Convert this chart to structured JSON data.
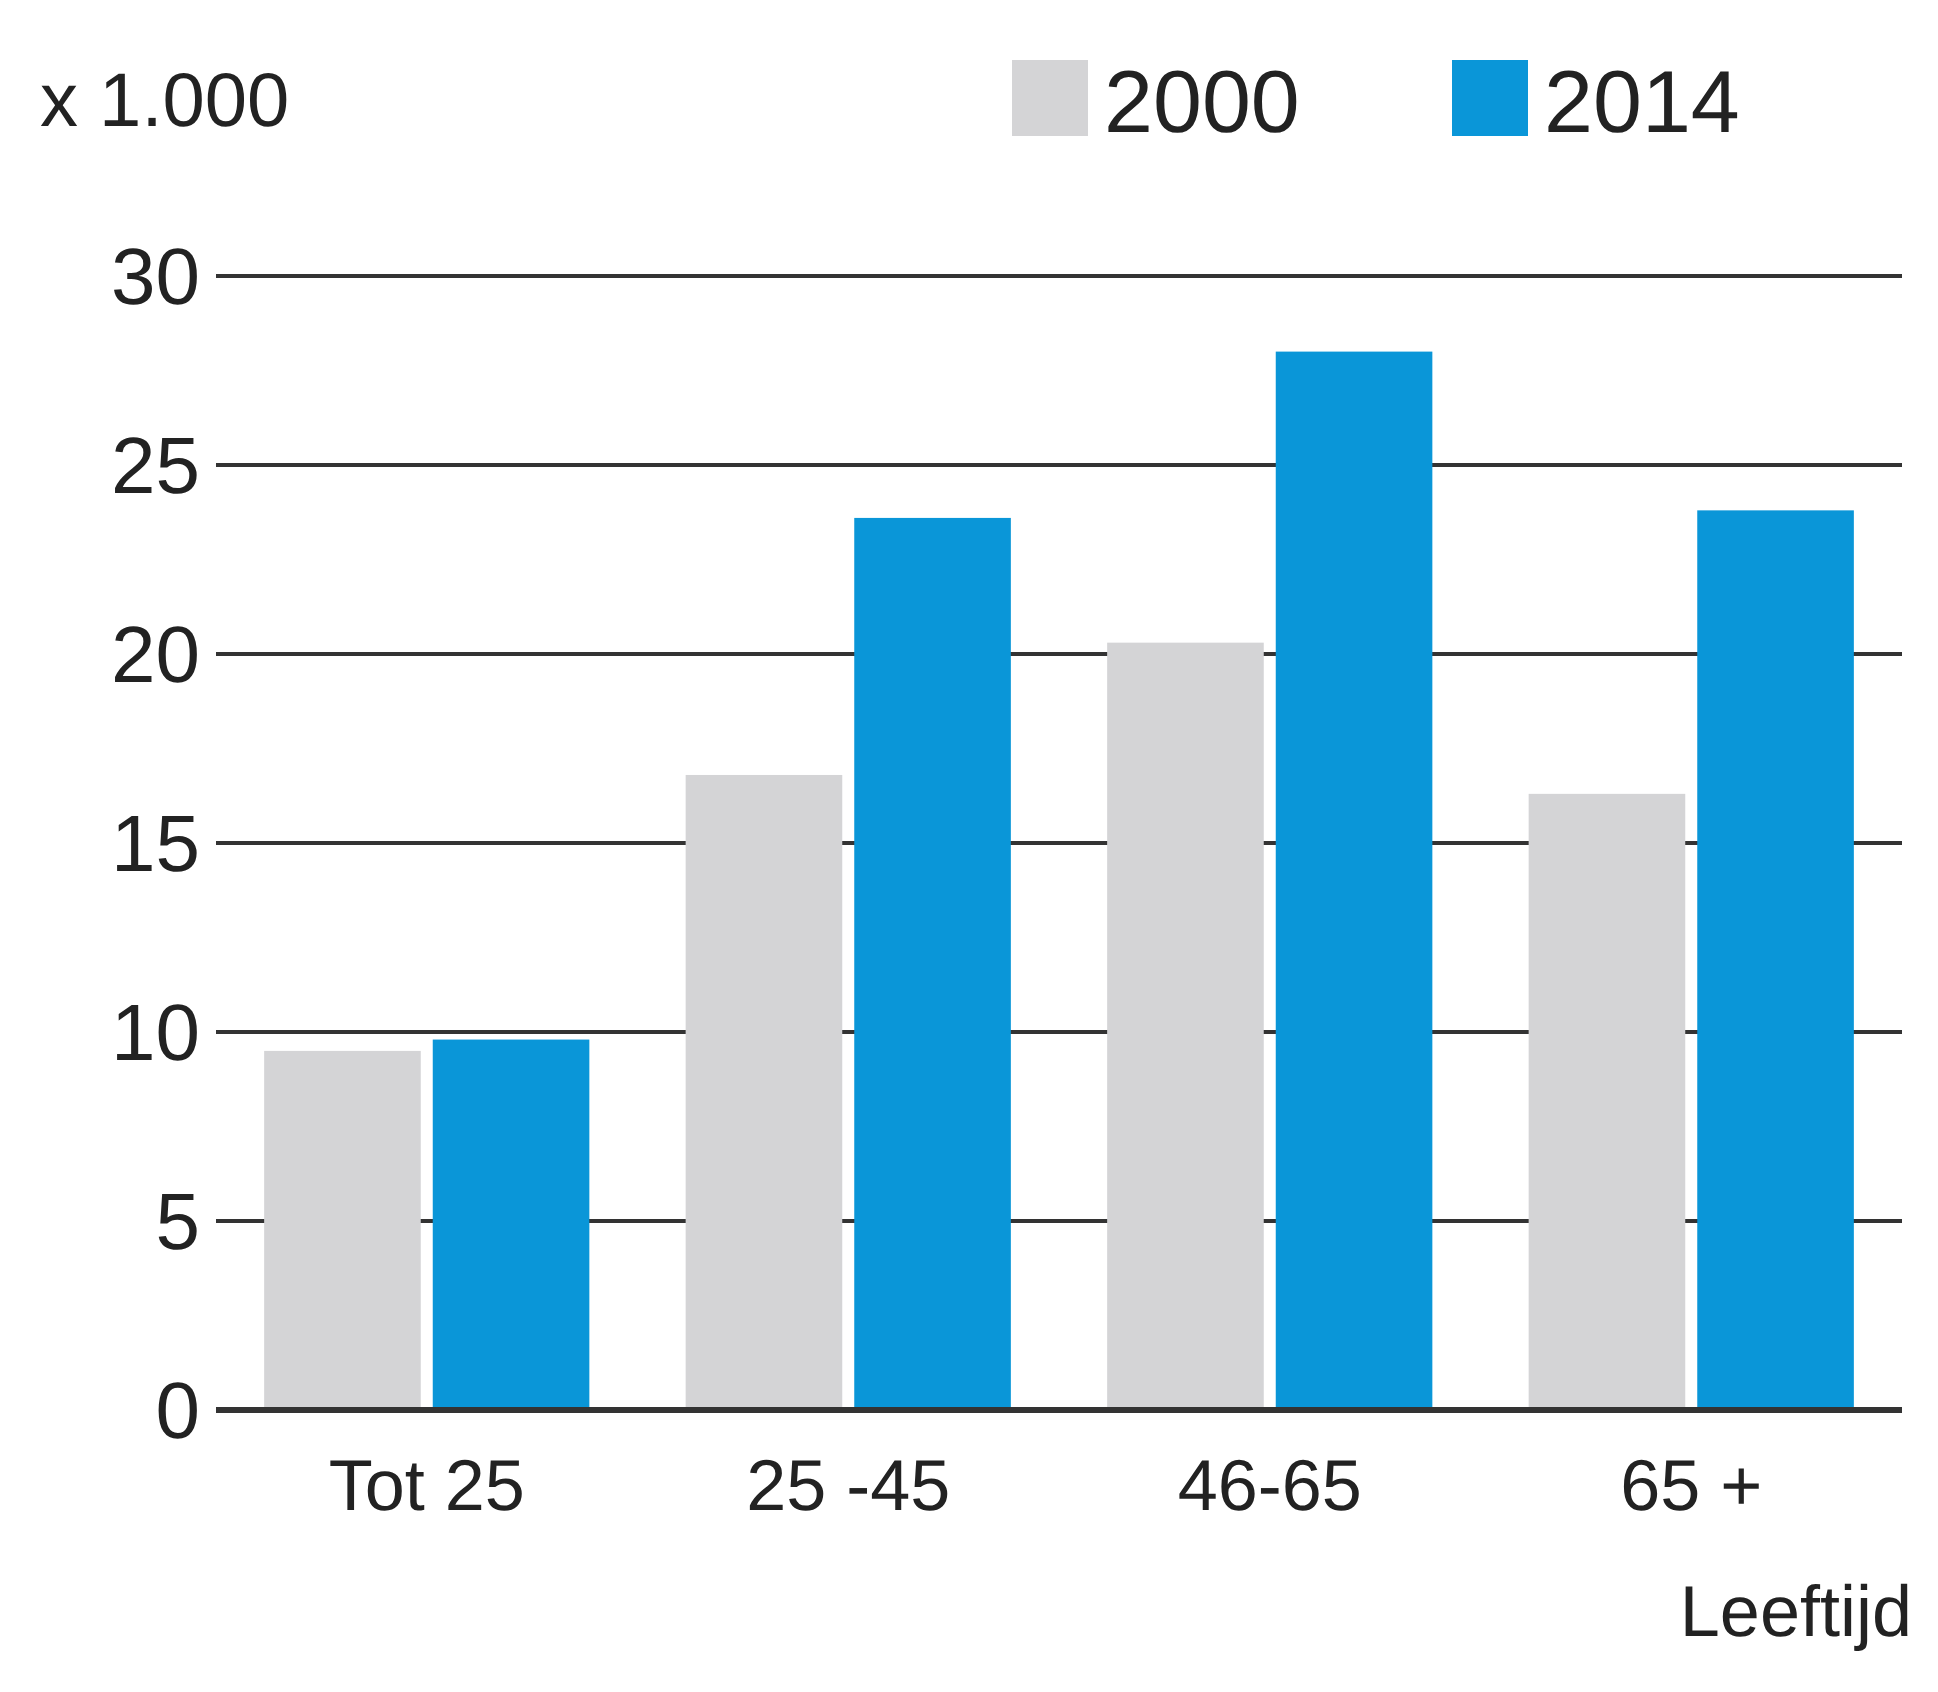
{
  "chart_data": {
    "type": "bar",
    "ylabel": "x 1.000",
    "xlabel": "Leeftijd",
    "categories": [
      "Tot 25",
      "25 -45",
      "46-65",
      "65 +"
    ],
    "series": [
      {
        "name": "2000",
        "color": "#d4d4d6",
        "values": [
          9.5,
          16.8,
          20.3,
          16.3
        ]
      },
      {
        "name": "2014",
        "color": "#0a96d8",
        "values": [
          9.8,
          23.6,
          28.0,
          23.8
        ]
      }
    ],
    "ylim": [
      0,
      30
    ],
    "yticks": [
      0,
      5,
      10,
      15,
      20,
      25,
      30
    ],
    "grid": "y",
    "legend": "top right"
  }
}
